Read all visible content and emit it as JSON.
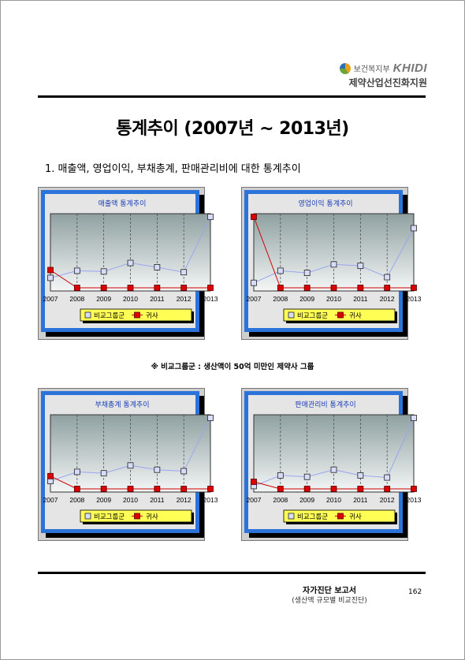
{
  "header": {
    "ministry": "보건복지부",
    "brand": "KHIDI",
    "org": "제약산업선진화지원"
  },
  "page_title": "통계추이 (2007년 ~ 2013년)",
  "section_heading": "1. 매출액, 영업이익, 부채총계, 판매관리비에 대한 통계추이",
  "note": "※ 비교그룹군 : 생산액이 50억 미만인 제약사 그룹",
  "footer": {
    "title": "자가진단 보고서",
    "subtitle": "(생산액 규모별 비교진단)",
    "page_number": "162"
  },
  "colors": {
    "panel_border": "#2b73d9",
    "group_line": "#9aa6f0",
    "company_line": "#cc0000",
    "legend_bg": "#ffff55",
    "title_text": "#1a3db8"
  },
  "chart_data": [
    {
      "type": "line",
      "title": "매출액 통계추이",
      "x": [
        "2007",
        "2008",
        "2009",
        "2010",
        "2011",
        "2012",
        "2013"
      ],
      "ylim": [
        0,
        100
      ],
      "grid": "vertical dashed",
      "legend_position": "bottom",
      "series": [
        {
          "name": "비교그룹군",
          "values": [
            14,
            24,
            23,
            35,
            29,
            22,
            100
          ]
        },
        {
          "name": "귀사",
          "values": [
            25,
            0,
            0,
            0,
            0,
            0,
            0
          ]
        }
      ]
    },
    {
      "type": "line",
      "title": "영업이익 통계추이",
      "x": [
        "2007",
        "2008",
        "2009",
        "2010",
        "2011",
        "2012",
        "2013"
      ],
      "ylim": [
        0,
        100
      ],
      "grid": "vertical dashed",
      "legend_position": "bottom",
      "series": [
        {
          "name": "비교그룹군",
          "values": [
            7,
            24,
            21,
            33,
            31,
            15,
            84
          ]
        },
        {
          "name": "귀사",
          "values": [
            100,
            0,
            0,
            0,
            0,
            0,
            0
          ]
        }
      ]
    },
    {
      "type": "line",
      "title": "부채총계 통계추이",
      "x": [
        "2007",
        "2008",
        "2009",
        "2010",
        "2011",
        "2012",
        "2013"
      ],
      "ylim": [
        0,
        100
      ],
      "grid": "vertical dashed",
      "legend_position": "bottom",
      "series": [
        {
          "name": "비교그룹군",
          "values": [
            11,
            24,
            22,
            33,
            27,
            25,
            100
          ]
        },
        {
          "name": "귀사",
          "values": [
            18,
            0,
            0,
            0,
            0,
            0,
            0
          ]
        }
      ]
    },
    {
      "type": "line",
      "title": "판매관리비 통계추이",
      "x": [
        "2007",
        "2008",
        "2009",
        "2010",
        "2011",
        "2012",
        "2013"
      ],
      "ylim": [
        0,
        100
      ],
      "grid": "vertical dashed",
      "legend_position": "bottom",
      "series": [
        {
          "name": "비교그룹군",
          "values": [
            4,
            19,
            17,
            27,
            19,
            16,
            100
          ]
        },
        {
          "name": "귀사",
          "values": [
            10,
            0,
            0,
            0,
            0,
            0,
            0
          ]
        }
      ]
    }
  ]
}
